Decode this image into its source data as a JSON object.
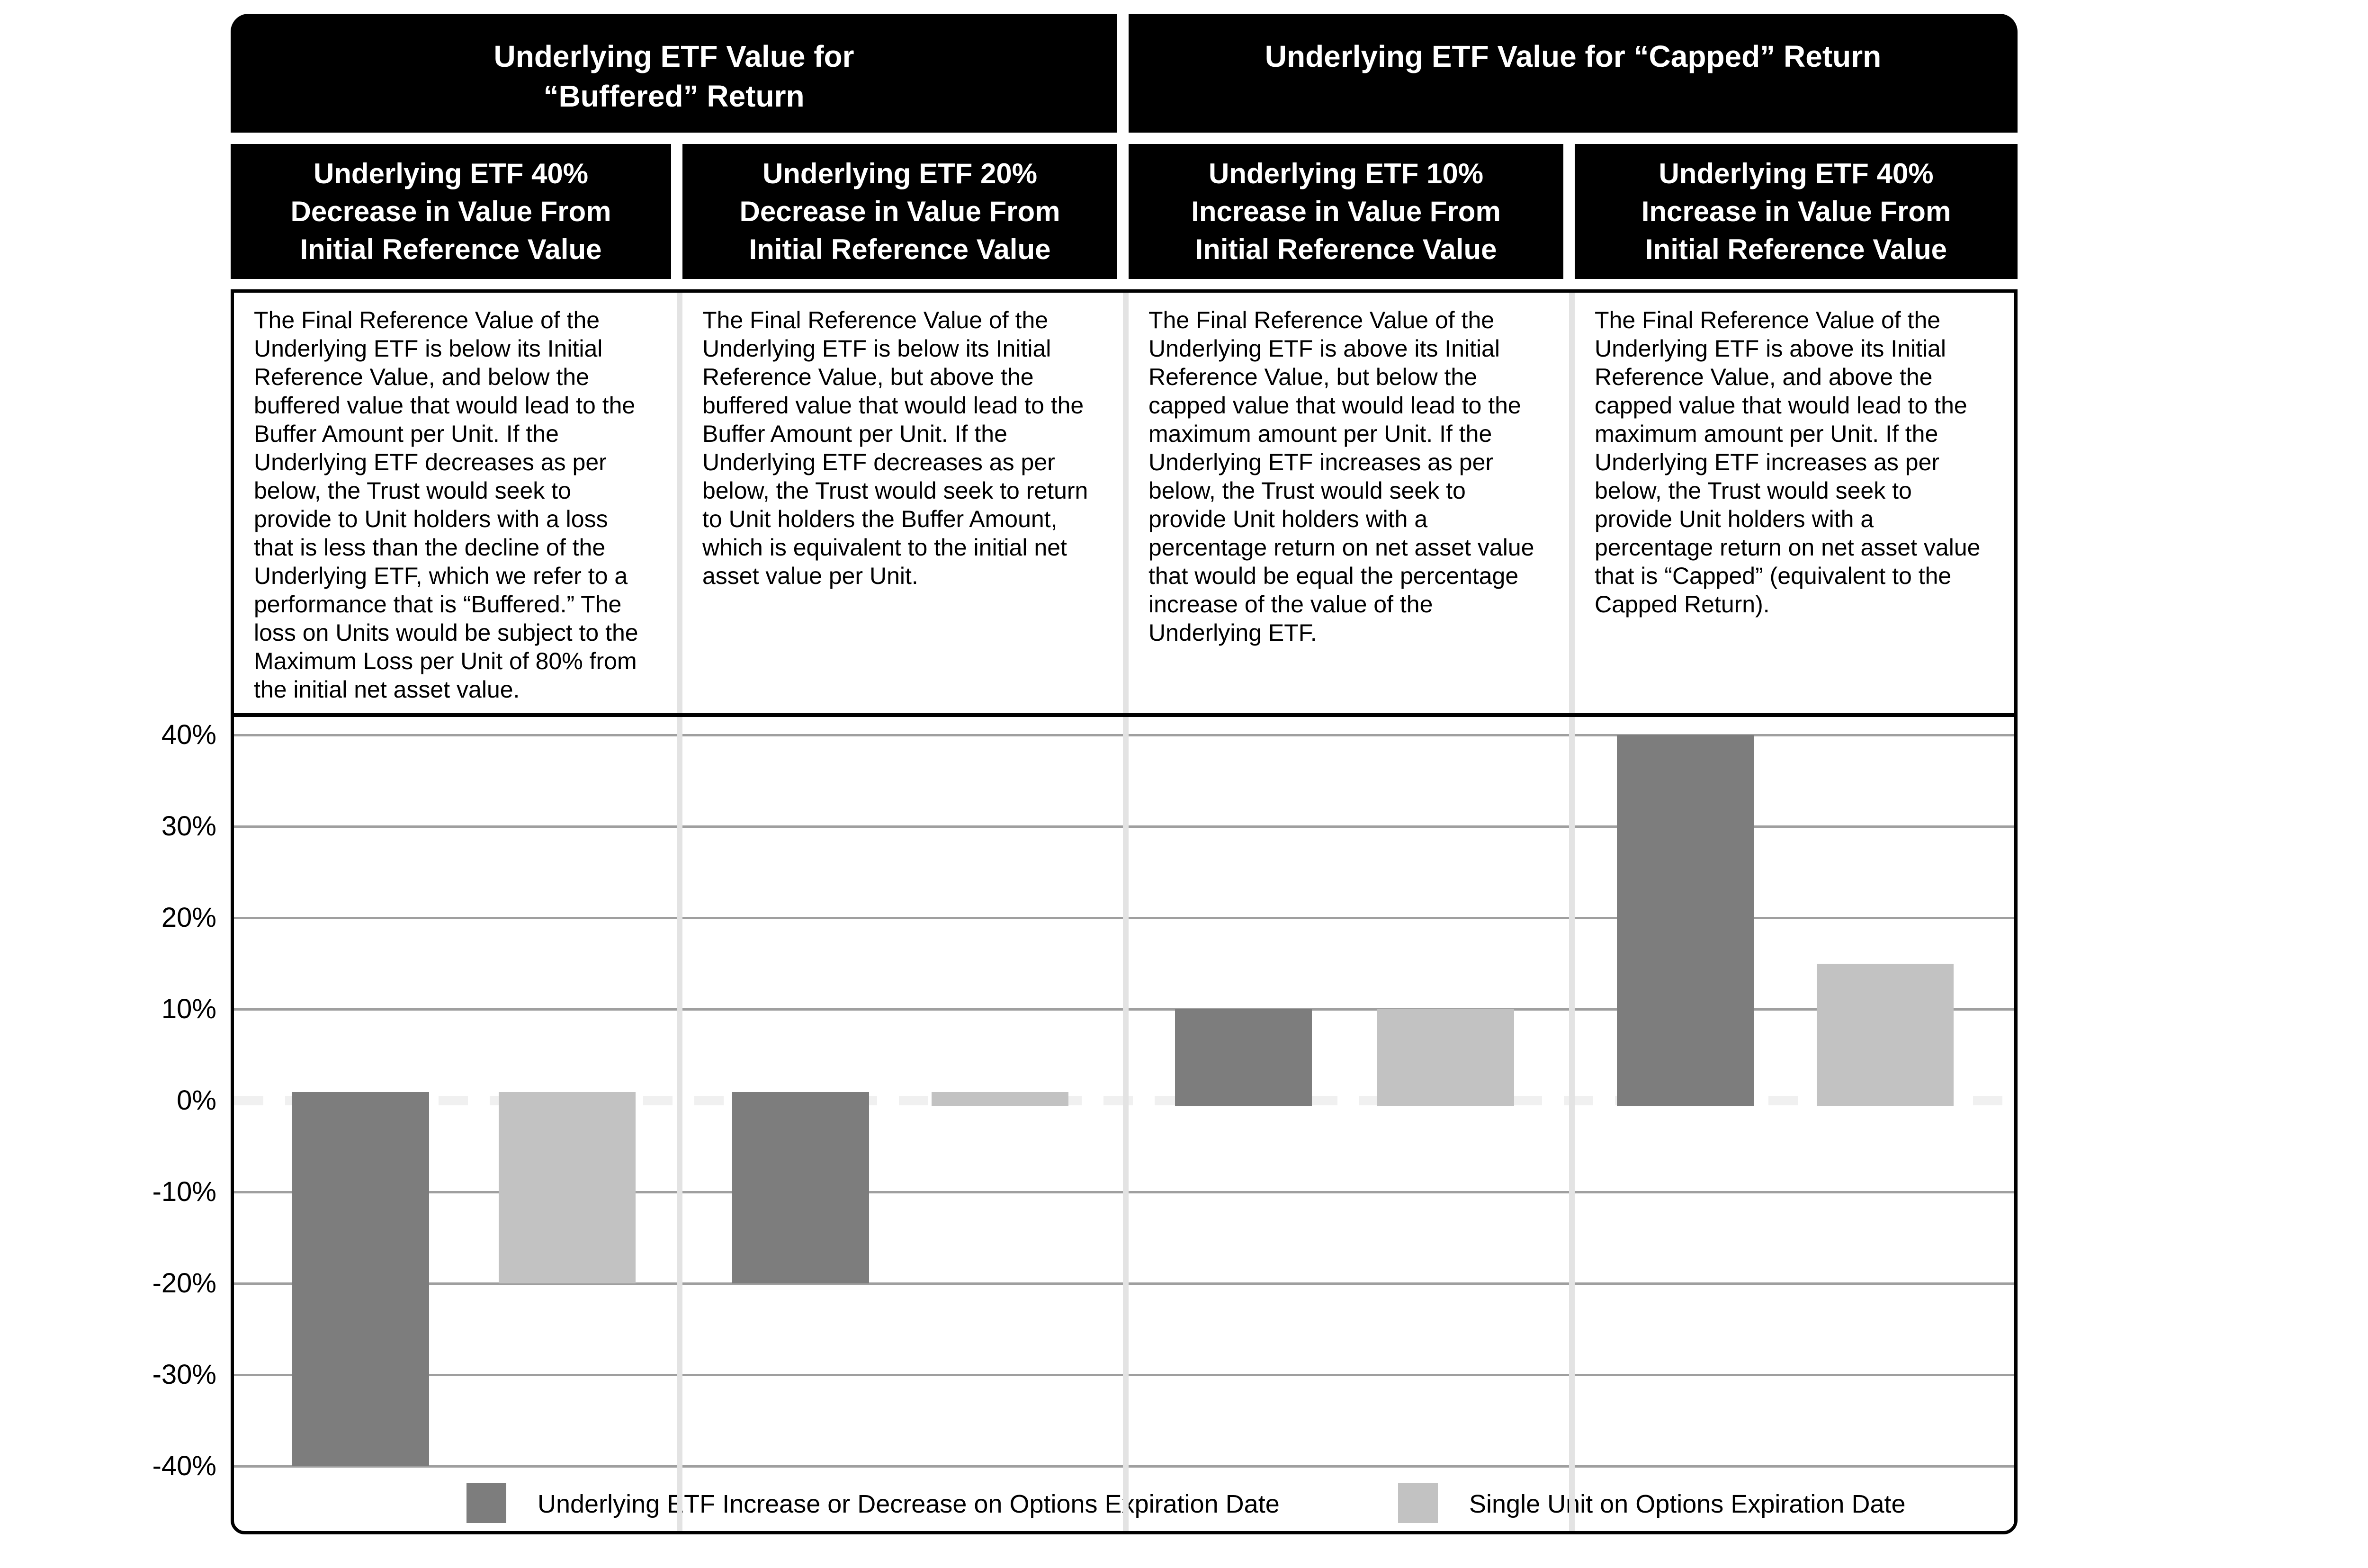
{
  "header_groups": [
    {
      "title": "Underlying ETF Value for\n“Buffered” Return"
    },
    {
      "title": "Underlying ETF Value for “Capped” Return"
    }
  ],
  "columns": [
    {
      "subheader": "Underlying ETF 40%\nDecrease in Value From\nInitial Reference Value",
      "description": "The Final Reference Value of the Underlying ETF is below its Initial Reference Value, and below the buffered value that would lead to the Buffer Amount per Unit. If the Underlying ETF decreases as per below, the Trust would seek to provide to Unit holders with a loss that is less than the decline of the Underlying ETF, which we refer to a performance that is “Buffered.” The loss on Units would be subject to the Maximum Loss per Unit of 80% from the initial net asset value."
    },
    {
      "subheader": "Underlying ETF 20%\nDecrease in Value From\nInitial Reference Value",
      "description": "The Final Reference Value of the Underlying ETF is below its Initial Reference Value, but above the buffered value that would lead to the Buffer Amount per Unit. If the Underlying ETF decreases as per below, the Trust would seek to return to Unit holders the Buffer Amount, which is equivalent to the initial net asset value per Unit."
    },
    {
      "subheader": "Underlying ETF 10%\nIncrease in Value From\nInitial Reference Value",
      "description": "The Final Reference Value of the Underlying ETF is above its Initial Reference Value, but below the capped value that would lead to the maximum amount per Unit. If the Underlying ETF increases as per below, the Trust would seek to provide Unit holders with a percentage return on net asset value that would be equal the percentage increase of the value of the Underlying ETF."
    },
    {
      "subheader": "Underlying ETF 40%\nIncrease in Value From\nInitial Reference Value",
      "description": "The Final Reference Value of the Underlying ETF is above its Initial Reference Value, and above the capped value that would lead to the maximum amount per Unit. If the Underlying ETF increases as per below, the Trust would seek to provide Unit holders with a percentage return on net asset value that is “Capped” (equivalent to the Capped Return)."
    }
  ],
  "chart_data": {
    "type": "bar",
    "categories": [
      "Underlying ETF 40% Decrease in Value From Initial Reference Value",
      "Underlying ETF 20% Decrease in Value From Initial Reference Value",
      "Underlying ETF 10% Increase in Value From Initial Reference Value",
      "Underlying ETF 40% Increase in Value From Initial Reference Value"
    ],
    "series": [
      {
        "name": "Underlying ETF Increase or Decrease on Options Expiration Date",
        "color": "#7d7d7d",
        "values": [
          -40,
          -20,
          10,
          40
        ]
      },
      {
        "name": "Single Unit on Options Expiration Date",
        "color": "#c2c2c2",
        "values": [
          -20,
          0,
          10,
          15
        ]
      }
    ],
    "yticks": [
      {
        "value": 40,
        "label": "40%"
      },
      {
        "value": 30,
        "label": "30%"
      },
      {
        "value": 20,
        "label": "20%"
      },
      {
        "value": 10,
        "label": "10%"
      },
      {
        "value": 0,
        "label": "0%"
      },
      {
        "value": -10,
        "label": "-10%"
      },
      {
        "value": -20,
        "label": "-20%"
      },
      {
        "value": -30,
        "label": "-30%"
      },
      {
        "value": -40,
        "label": "-40%"
      }
    ],
    "ylim": [
      -40,
      40
    ],
    "grid": true,
    "zero_line": "dashed",
    "legend_position": "bottom",
    "colors": {
      "grid": "#9f9f9f",
      "zero_dash": "#f0f0f0",
      "separator": "#e3e3e3"
    }
  }
}
